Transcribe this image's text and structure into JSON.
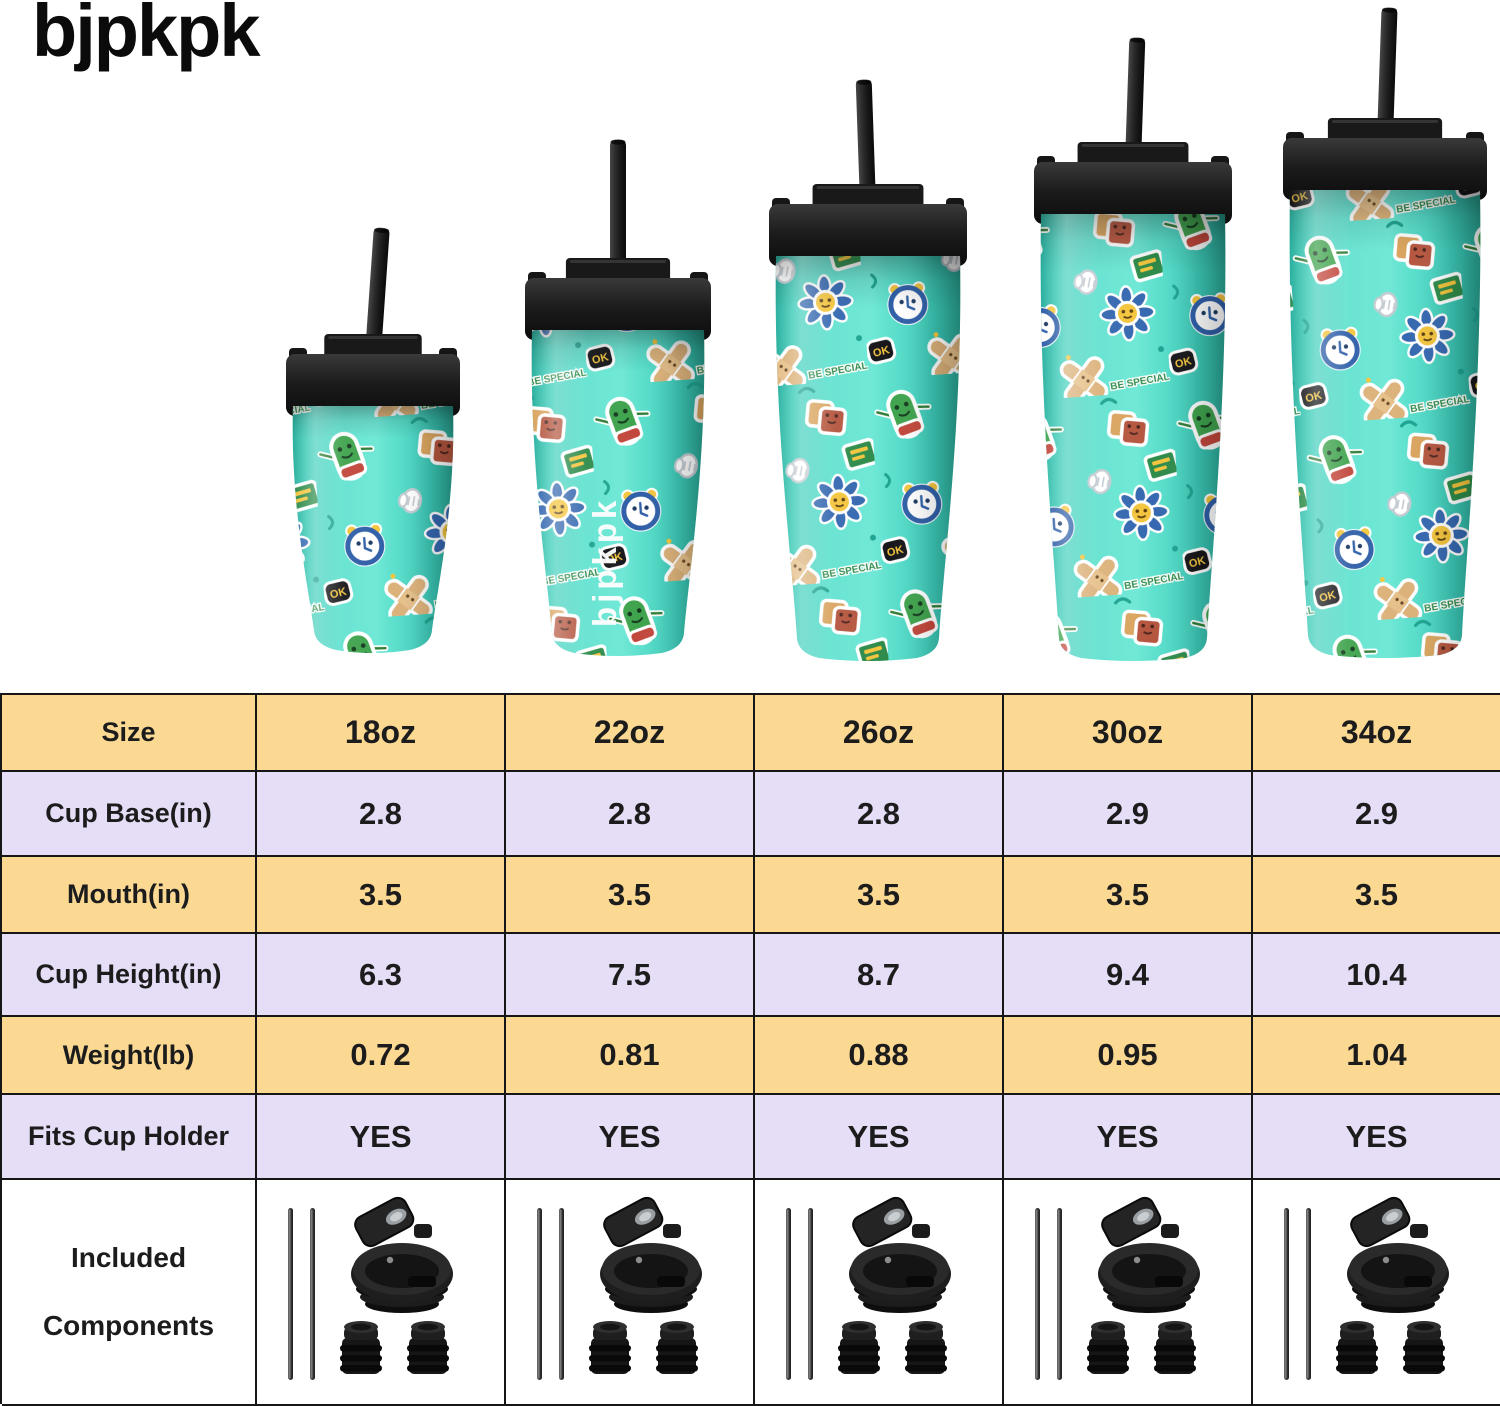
{
  "brand": {
    "logo_text": "bjpkpk",
    "on_cup_logo_text": "bjpkpk"
  },
  "products": {
    "sizes": [
      "18oz",
      "22oz",
      "26oz",
      "30oz",
      "34oz"
    ]
  },
  "tumbler_pattern": {
    "sticker_texts": [
      "OK",
      "BE SPECIAL"
    ],
    "sticker_icons": [
      "pickle-character-icon",
      "toast-pair-icon",
      "alarm-clock-icon",
      "flower-face-icon",
      "bandaid-cross-icon",
      "green-book-icon",
      "white-glove-icon",
      "ok-badge-icon"
    ]
  },
  "spec_table": {
    "header": {
      "label": "Size",
      "values": [
        "18oz",
        "22oz",
        "26oz",
        "30oz",
        "34oz"
      ]
    },
    "rows": [
      {
        "label": "Cup Base(in)",
        "values": [
          "2.8",
          "2.8",
          "2.8",
          "2.9",
          "2.9"
        ]
      },
      {
        "label": "Mouth(in)",
        "values": [
          "3.5",
          "3.5",
          "3.5",
          "3.5",
          "3.5"
        ]
      },
      {
        "label": "Cup Height(in)",
        "values": [
          "6.3",
          "7.5",
          "8.7",
          "9.4",
          "10.4"
        ]
      },
      {
        "label": "Weight(lb)",
        "values": [
          "0.72",
          "0.81",
          "0.88",
          "0.95",
          "1.04"
        ]
      },
      {
        "label": "Fits Cup Holder",
        "values": [
          "YES",
          "YES",
          "YES",
          "YES",
          "YES"
        ]
      }
    ],
    "components_row": {
      "label_lines": [
        "Included",
        "Components"
      ],
      "item_icons": [
        "metal-straws-icon",
        "flip-lid-icon",
        "straw-stoppers-icon"
      ]
    }
  },
  "colors": {
    "row_yellow": "#FBD993",
    "row_lavender": "#E6DDF7",
    "table_border": "#161616",
    "tumbler_teal": "#45D7C4",
    "tumbler_teal_highlight": "#6FE8D6",
    "tumbler_teal_shadow": "#29A795",
    "lid_black": "#1B1B1B",
    "background": "#FFFFFF"
  }
}
